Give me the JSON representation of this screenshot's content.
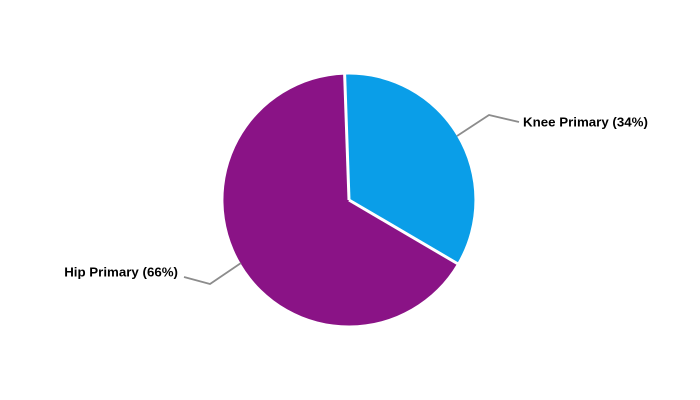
{
  "chart_data": {
    "type": "pie",
    "categories": [
      "Knee Primary",
      "Hip Primary"
    ],
    "values_pct": [
      34,
      66
    ],
    "slices": [
      {
        "name": "Knee Primary",
        "value_pct": 34,
        "label": "Knee Primary (34%)",
        "color": "#0A9EE8"
      },
      {
        "name": "Hip Primary",
        "value_pct": 66,
        "label": "Hip Primary (66%)",
        "color": "#8A1386"
      }
    ],
    "start_angle_deg": -2,
    "direction": "clockwise",
    "slice_border_color": "#FFFFFF",
    "leader_line_color": "#8C8C8C",
    "label_text_color": "#000000",
    "background_color": "#FFFFFF",
    "legend_position": "none",
    "grid": false
  }
}
